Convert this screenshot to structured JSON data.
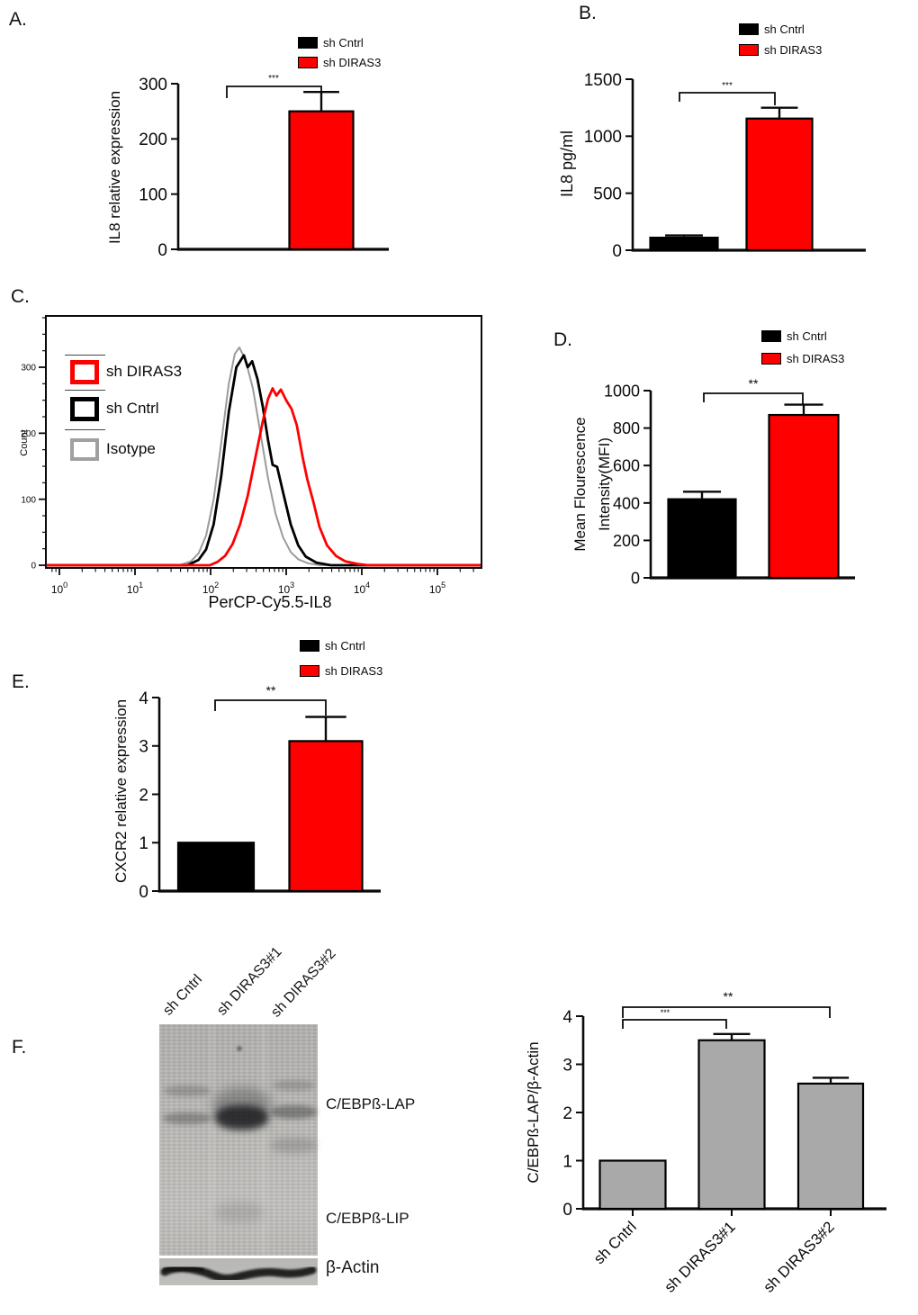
{
  "figure": {
    "background": "#ffffff",
    "panels": {
      "A": "A.",
      "B": "B.",
      "C": "C.",
      "D": "D.",
      "E": "E.",
      "F": "F."
    }
  },
  "colors": {
    "control_black": "#000000",
    "diras3_red": "#ff0000",
    "isotype_gray": "#9b9b9b",
    "bar_gray": "#a9a9a9"
  },
  "chart_data": [
    {
      "id": "A",
      "type": "bar",
      "ylabel": "IL8 relative expression",
      "ylim": [
        0,
        300
      ],
      "yticks": [
        0,
        100,
        200,
        300
      ],
      "categories": [
        "sh Cntrl",
        "sh DIRAS3"
      ],
      "values": [
        0,
        250
      ],
      "errors": [
        0,
        35
      ],
      "bar_colors": [
        "#000000",
        "#ff0000"
      ],
      "legend": [
        {
          "label": "sh Cntrl",
          "color": "#000000"
        },
        {
          "label": "sh DIRAS3",
          "color": "#ff0000"
        }
      ],
      "significance": [
        {
          "pair": [
            "sh Cntrl",
            "sh DIRAS3"
          ],
          "label": "***"
        }
      ]
    },
    {
      "id": "B",
      "type": "bar",
      "ylabel": "IL8 pg/ml",
      "ylim": [
        0,
        1500
      ],
      "yticks": [
        0,
        500,
        1000,
        1500
      ],
      "categories": [
        "sh Cntrl",
        "sh DIRAS3"
      ],
      "values": [
        110,
        1155
      ],
      "errors": [
        20,
        95
      ],
      "bar_colors": [
        "#000000",
        "#ff0000"
      ],
      "legend": [
        {
          "label": "sh Cntrl",
          "color": "#000000"
        },
        {
          "label": "sh DIRAS3",
          "color": "#ff0000"
        }
      ],
      "significance": [
        {
          "pair": [
            "sh Cntrl",
            "sh DIRAS3"
          ],
          "label": "***"
        }
      ]
    },
    {
      "id": "C",
      "type": "line",
      "xlabel": "PerCP-Cy5.5-IL8",
      "ylabel": "Count",
      "x_scale": "log10",
      "xticks": [
        {
          "base": "10",
          "exp": "0"
        },
        {
          "base": "10",
          "exp": "1"
        },
        {
          "base": "10",
          "exp": "2"
        },
        {
          "base": "10",
          "exp": "3"
        },
        {
          "base": "10",
          "exp": "4"
        },
        {
          "base": "10",
          "exp": "5"
        }
      ],
      "ylim": [
        0,
        380
      ],
      "yticks": [
        0,
        100,
        200,
        300
      ],
      "legend": [
        {
          "label": "sh DIRAS3",
          "color": "#ff0000"
        },
        {
          "label": "sh Cntrl",
          "color": "#000000"
        },
        {
          "label": "Isotype",
          "color": "#a0a0a0"
        }
      ],
      "series": [
        {
          "name": "Isotype",
          "color": "#9b9b9b",
          "points_logx_count": [
            [
              1.59,
              0
            ],
            [
              1.74,
              6
            ],
            [
              1.84,
              18
            ],
            [
              1.94,
              45
            ],
            [
              2.04,
              100
            ],
            [
              2.14,
              185
            ],
            [
              2.24,
              275
            ],
            [
              2.32,
              320
            ],
            [
              2.38,
              330
            ],
            [
              2.46,
              312
            ],
            [
              2.56,
              268
            ],
            [
              2.66,
              200
            ],
            [
              2.76,
              132
            ],
            [
              2.86,
              78
            ],
            [
              2.96,
              42
            ],
            [
              3.06,
              20
            ],
            [
              3.16,
              9
            ],
            [
              3.29,
              3
            ],
            [
              3.44,
              0
            ]
          ]
        },
        {
          "name": "sh Cntrl",
          "color": "#000000",
          "points_logx_count": [
            [
              1.69,
              0
            ],
            [
              1.84,
              8
            ],
            [
              1.94,
              24
            ],
            [
              2.04,
              62
            ],
            [
              2.14,
              135
            ],
            [
              2.24,
              232
            ],
            [
              2.34,
              300
            ],
            [
              2.44,
              318
            ],
            [
              2.49,
              300
            ],
            [
              2.55,
              309
            ],
            [
              2.62,
              282
            ],
            [
              2.69,
              240
            ],
            [
              2.76,
              190
            ],
            [
              2.82,
              152
            ],
            [
              2.88,
              149
            ],
            [
              2.96,
              110
            ],
            [
              3.06,
              62
            ],
            [
              3.16,
              30
            ],
            [
              3.26,
              13
            ],
            [
              3.4,
              4
            ],
            [
              3.59,
              0
            ]
          ]
        },
        {
          "name": "sh DIRAS3",
          "color": "#ff0000",
          "points_logx_count": [
            [
              1.99,
              0
            ],
            [
              2.09,
              5
            ],
            [
              2.19,
              14
            ],
            [
              2.29,
              32
            ],
            [
              2.39,
              62
            ],
            [
              2.49,
              105
            ],
            [
              2.59,
              162
            ],
            [
              2.69,
              218
            ],
            [
              2.76,
              252
            ],
            [
              2.82,
              268
            ],
            [
              2.87,
              257
            ],
            [
              2.93,
              266
            ],
            [
              3.0,
              250
            ],
            [
              3.07,
              237
            ],
            [
              3.14,
              212
            ],
            [
              3.22,
              162
            ],
            [
              3.28,
              130
            ],
            [
              3.36,
              96
            ],
            [
              3.44,
              58
            ],
            [
              3.54,
              30
            ],
            [
              3.66,
              14
            ],
            [
              3.78,
              6
            ],
            [
              3.94,
              2
            ],
            [
              4.09,
              0
            ]
          ]
        }
      ]
    },
    {
      "id": "D",
      "type": "bar",
      "ylabel": "Mean Flourescence\nIntensity(MFI)",
      "ylim": [
        0,
        1000
      ],
      "yticks": [
        0,
        200,
        400,
        600,
        800,
        1000
      ],
      "categories": [
        "sh Cntrl",
        "sh DIRAS3"
      ],
      "values": [
        420,
        870
      ],
      "errors": [
        40,
        55
      ],
      "bar_colors": [
        "#000000",
        "#ff0000"
      ],
      "legend": [
        {
          "label": "sh Cntrl",
          "color": "#000000"
        },
        {
          "label": "sh DIRAS3",
          "color": "#ff0000"
        }
      ],
      "significance": [
        {
          "pair": [
            "sh Cntrl",
            "sh DIRAS3"
          ],
          "label": "**"
        }
      ]
    },
    {
      "id": "E",
      "type": "bar",
      "ylabel": "CXCR2 relative expression",
      "ylim": [
        0,
        4
      ],
      "yticks": [
        0,
        1,
        2,
        3,
        4
      ],
      "categories": [
        "sh Cntrl",
        "sh DIRAS3"
      ],
      "values": [
        1.0,
        3.1
      ],
      "errors": [
        0,
        0.5
      ],
      "bar_colors": [
        "#000000",
        "#ff0000"
      ],
      "legend": [
        {
          "label": "sh Cntrl",
          "color": "#000000"
        },
        {
          "label": "sh DIRAS3",
          "color": "#ff0000"
        }
      ],
      "significance": [
        {
          "pair": [
            "sh Cntrl",
            "sh DIRAS3"
          ],
          "label": "**"
        }
      ]
    },
    {
      "id": "F",
      "type": "bar",
      "ylabel": "C/EBPß-LAP/β-Actin",
      "ylim": [
        0,
        4
      ],
      "yticks": [
        0,
        1,
        2,
        3,
        4
      ],
      "categories": [
        "sh Cntrl",
        "sh DIRAS3#1",
        "sh DIRAS3#2"
      ],
      "values": [
        1.0,
        3.5,
        2.6
      ],
      "errors": [
        0,
        0.13,
        0.12
      ],
      "bar_colors": [
        "#a9a9a9",
        "#a9a9a9",
        "#a9a9a9"
      ],
      "legend": [],
      "significance": [
        {
          "pair": [
            "sh Cntrl",
            "sh DIRAS3#1"
          ],
          "label": "***"
        },
        {
          "pair": [
            "sh Cntrl",
            "sh DIRAS3#2"
          ],
          "label": "**"
        }
      ]
    }
  ],
  "blot": {
    "lanes": [
      "sh Cntrl",
      "sh DIRAS3#1",
      "sh DIRAS3#2"
    ],
    "bands": [
      "C/EBPß-LAP",
      "C/EBPß-LIP",
      "β-Actin"
    ]
  }
}
